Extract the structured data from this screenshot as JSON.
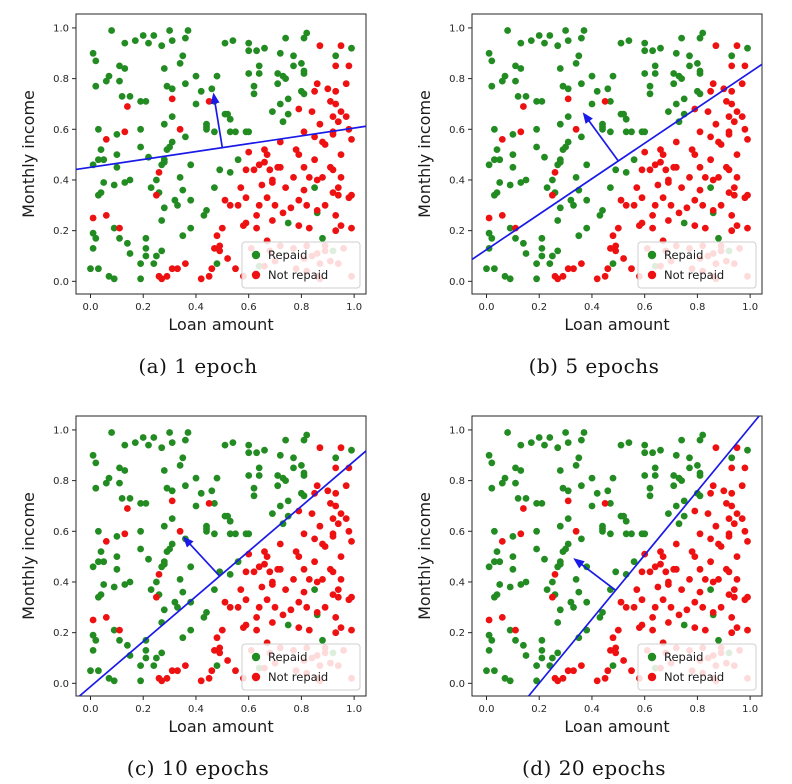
{
  "figure": {
    "subplots": [
      {
        "id": "a",
        "caption": "(a) 1 epoch",
        "line": {
          "slope": 0.155,
          "intercept": 0.45
        },
        "arrow": {
          "tail": [
            0.5,
            0.5275
          ],
          "tip": [
            0.466,
            0.745
          ]
        }
      },
      {
        "id": "b",
        "caption": "(b) 5 epochs",
        "line": {
          "slope": 0.7,
          "intercept": 0.125
        },
        "arrow": {
          "tail": [
            0.5,
            0.475
          ],
          "tip": [
            0.365,
            0.667
          ]
        }
      },
      {
        "id": "c",
        "caption": "(c) 10 epochs",
        "line": {
          "slope": 0.89,
          "intercept": -0.013
        },
        "arrow": {
          "tail": [
            0.49,
            0.423
          ],
          "tip": [
            0.35,
            0.58
          ]
        }
      },
      {
        "id": "d",
        "caption": "(d) 20 epochs",
        "line": {
          "slope": 1.264,
          "intercept": -0.252
        },
        "arrow": {
          "tail": [
            0.49,
            0.367
          ],
          "tip": [
            0.329,
            0.494
          ]
        }
      }
    ]
  },
  "chart_data": {
    "type": "scatter",
    "title": "",
    "xlabel": "Loan amount",
    "ylabel": "Monthly income",
    "xlim": [
      -0.055,
      1.045
    ],
    "ylim": [
      -0.05,
      1.055
    ],
    "xticks": [
      0.0,
      0.2,
      0.4,
      0.6,
      0.8,
      1.0
    ],
    "yticks": [
      0.0,
      0.2,
      0.4,
      0.6,
      0.8,
      1.0
    ],
    "grid": false,
    "legend": {
      "position": "lower right",
      "entries": [
        {
          "label": "Repaid",
          "color": "#228B22"
        },
        {
          "label": "Not repaid",
          "color": "#EE1111"
        }
      ]
    },
    "colors": {
      "repaid": "#228B22",
      "not_repaid": "#EE1111",
      "boundary_line": "#1A1AE8",
      "axis": "#262626",
      "legend_border": "#cfcfcf"
    },
    "series": [
      {
        "name": "Repaid",
        "marker": "circle",
        "color": "#228B22",
        "points": [
          [
            0.14,
            0.15
          ],
          [
            0.35,
            0.89
          ],
          [
            0.38,
            0.46
          ],
          [
            0.38,
            0.32
          ],
          [
            0.28,
            0.84
          ],
          [
            0.19,
            0.71
          ],
          [
            0.1,
            0.58
          ],
          [
            0.2,
            0.97
          ],
          [
            0.49,
            0.44
          ],
          [
            0.07,
            0.81
          ],
          [
            0.64,
            0.06
          ],
          [
            0.28,
            0.62
          ],
          [
            0.08,
            0.99
          ],
          [
            0.03,
            0.48
          ],
          [
            0.21,
            0.17
          ],
          [
            0.06,
            0.79
          ],
          [
            0.8,
            0.86
          ],
          [
            0.09,
            0.38
          ],
          [
            0.44,
            0.6
          ],
          [
            0.53,
            0.59
          ],
          [
            0.4,
            0.81
          ],
          [
            0.28,
            0.48
          ],
          [
            0.11,
            0.17
          ],
          [
            0.21,
            0.1
          ],
          [
            0.55,
            0.59
          ],
          [
            0.22,
            0.94
          ],
          [
            0.92,
            0.12
          ],
          [
            0.81,
            0.96
          ],
          [
            0.44,
            0.28
          ],
          [
            0.75,
            0.66
          ],
          [
            0.44,
            0.61
          ],
          [
            0.28,
            0.47
          ],
          [
            0.56,
            0.48
          ],
          [
            0.23,
            0.37
          ],
          [
            0.31,
            0.65
          ],
          [
            0.27,
            0.12
          ],
          [
            0.01,
            0.9
          ],
          [
            0.64,
            0.85
          ],
          [
            0.66,
            0.92
          ],
          [
            0.34,
            0.86
          ],
          [
            0.1,
            0.45
          ],
          [
            0.43,
            0.26
          ],
          [
            0.64,
            0.82
          ],
          [
            0.13,
            0.39
          ],
          [
            0.12,
            0.73
          ],
          [
            0.31,
            0.55
          ],
          [
            0.88,
            0.17
          ],
          [
            0.48,
            0.81
          ],
          [
            0.17,
            0.95
          ],
          [
            0.28,
            0.29
          ],
          [
            0.25,
            0.4
          ],
          [
            0.53,
            0.64
          ],
          [
            0.36,
            0.78
          ],
          [
            0.03,
            0.6
          ],
          [
            0.01,
            0.13
          ],
          [
            0.3,
            0.53
          ],
          [
            0.05,
            0.48
          ],
          [
            0.13,
            0.84
          ],
          [
            0.51,
            0.94
          ],
          [
            0.15,
            0.11
          ],
          [
            0.6,
            0.94
          ],
          [
            0.72,
            0.7
          ],
          [
            0.36,
            0.57
          ],
          [
            0.59,
            0.59
          ],
          [
            0.19,
            0.53
          ],
          [
            0.09,
            0.21
          ],
          [
            0.73,
            0.81
          ],
          [
            0.11,
            0.79
          ],
          [
            0.11,
            0.85
          ],
          [
            0.48,
            0.07
          ],
          [
            0.44,
            0.62
          ],
          [
            0.37,
            0.99
          ],
          [
            0.62,
            0.74
          ],
          [
            0.35,
            0.18
          ],
          [
            0.27,
            0.24
          ],
          [
            0.27,
            0.93
          ],
          [
            0.81,
            0.83
          ],
          [
            0.01,
            0.19
          ],
          [
            0.13,
            0.94
          ],
          [
            0.47,
            0.37
          ],
          [
            0.19,
            0.07
          ],
          [
            0.02,
            0.17
          ],
          [
            0.02,
            0.77
          ],
          [
            0.05,
            0.39
          ],
          [
            0.21,
            0.71
          ],
          [
            0.31,
            0.76
          ],
          [
            0.75,
            0.23
          ],
          [
            0.46,
            0.76
          ],
          [
            0.0,
            0.05
          ],
          [
            0.26,
            0.35
          ],
          [
            0.6,
            0.82
          ],
          [
            0.77,
            0.85
          ],
          [
            0.42,
            0.75
          ],
          [
            0.77,
            0.89
          ],
          [
            0.6,
            0.91
          ],
          [
            0.73,
            0.63
          ],
          [
            0.71,
            0.78
          ],
          [
            0.09,
            0.01
          ],
          [
            0.22,
            0.49
          ],
          [
            0.53,
            0.43
          ],
          [
            0.01,
            0.46
          ],
          [
            0.54,
            0.95
          ],
          [
            0.85,
            0.37
          ],
          [
            0.1,
            0.5
          ],
          [
            0.19,
            0.6
          ],
          [
            0.34,
            0.41
          ],
          [
            0.29,
            0.77
          ],
          [
            0.47,
            0.71
          ],
          [
            0.3,
            0.99
          ],
          [
            0.21,
            0.13
          ],
          [
            0.71,
            0.82
          ],
          [
            0.81,
            0.82
          ],
          [
            0.04,
            0.52
          ],
          [
            0.35,
            0.36
          ],
          [
            0.02,
            0.87
          ],
          [
            0.52,
            0.66
          ],
          [
            0.24,
            0.97
          ],
          [
            0.75,
            0.72
          ],
          [
            0.36,
            0.96
          ],
          [
            0.74,
            0.96
          ],
          [
            0.69,
            0.67
          ],
          [
            0.62,
            0.77
          ],
          [
            0.24,
            0.07
          ],
          [
            0.33,
            0.3
          ],
          [
            0.47,
            0.59
          ],
          [
            0.38,
            0.21
          ],
          [
            0.51,
            0.66
          ],
          [
            0.4,
            0.7
          ],
          [
            0.27,
            0.46
          ],
          [
            0.63,
            0.91
          ],
          [
            0.03,
            0.05
          ],
          [
            0.81,
            0.74
          ],
          [
            0.04,
            0.35
          ],
          [
            0.72,
            0.9
          ],
          [
            0.03,
            0.34
          ],
          [
            0.29,
            0.52
          ],
          [
            0.6,
            0.59
          ],
          [
            0.74,
            0.8
          ],
          [
            0.32,
            0.32
          ],
          [
            0.86,
            0.27
          ],
          [
            0.82,
            0.98
          ],
          [
            0.8,
            0.75
          ],
          [
            0.31,
            0.95
          ],
          [
            0.25,
            0.1
          ],
          [
            0.19,
            0.01
          ],
          [
            0.15,
            0.73
          ],
          [
            0.07,
            0.02
          ],
          [
            0.15,
            0.4
          ],
          [
            0.93,
            0.89
          ],
          [
            0.99,
            0.92
          ]
        ]
      },
      {
        "name": "Not repaid",
        "marker": "circle",
        "color": "#EE1111",
        "points": [
          [
            0.92,
            0.65
          ],
          [
            0.79,
            0.32
          ],
          [
            0.26,
            0.43
          ],
          [
            0.79,
            0.5
          ],
          [
            0.69,
            0.39
          ],
          [
            0.93,
            0.75
          ],
          [
            0.59,
            0.23
          ],
          [
            0.86,
            0.28
          ],
          [
            0.25,
            0.34
          ],
          [
            0.82,
            0.14
          ],
          [
            0.51,
            0.32
          ],
          [
            0.82,
            0.3
          ],
          [
            0.66,
            0.47
          ],
          [
            0.95,
            0.5
          ],
          [
            0.58,
            0.22
          ],
          [
            0.31,
            0.72
          ],
          [
            0.45,
            0.02
          ],
          [
            0.84,
            0.1
          ],
          [
            0.27,
            0.01
          ],
          [
            0.93,
            0.85
          ],
          [
            0.64,
            0.46
          ],
          [
            0.89,
            0.54
          ],
          [
            0.81,
            0.09
          ],
          [
            0.59,
            0.33
          ],
          [
            0.86,
            0.78
          ],
          [
            0.91,
            0.45
          ],
          [
            0.34,
            0.6
          ],
          [
            0.36,
            0.07
          ],
          [
            0.26,
            0.02
          ],
          [
            0.49,
            0.14
          ],
          [
            0.72,
            0.45
          ],
          [
            0.87,
            0.01
          ],
          [
            0.66,
            0.06
          ],
          [
            0.52,
            0.09
          ],
          [
            0.91,
            0.71
          ],
          [
            0.92,
            0.59
          ],
          [
            0.82,
            0.04
          ],
          [
            0.66,
            0.52
          ],
          [
            0.14,
            0.69
          ],
          [
            0.33,
            0.05
          ],
          [
            0.86,
            0.11
          ],
          [
            0.93,
            0.26
          ],
          [
            0.31,
            0.05
          ],
          [
            0.95,
            0.67
          ],
          [
            0.85,
            0.75
          ],
          [
            0.89,
            0.12
          ],
          [
            0.49,
            0.12
          ],
          [
            0.98,
            0.33
          ],
          [
            0.67,
            0.33
          ],
          [
            0.62,
            0.44
          ],
          [
            0.06,
            0.56
          ],
          [
            0.64,
            0.3
          ],
          [
            0.86,
            0.02
          ],
          [
            0.94,
            0.63
          ],
          [
            0.95,
            0.22
          ],
          [
            0.98,
            0.6
          ],
          [
            0.94,
            0.37
          ],
          [
            0.76,
            0.29
          ],
          [
            0.84,
            0.67
          ],
          [
            0.48,
            0.18
          ],
          [
            0.69,
            0.4
          ],
          [
            0.53,
            0.3
          ],
          [
            0.68,
            0.12
          ],
          [
            0.71,
            0.45
          ],
          [
            0.77,
            0.13
          ],
          [
            0.72,
            0.14
          ],
          [
            0.68,
            0.44
          ],
          [
            0.79,
            0.22
          ],
          [
            0.79,
            0.68
          ],
          [
            0.92,
            0.58
          ],
          [
            0.92,
            0.35
          ],
          [
            0.42,
            0.01
          ],
          [
            0.99,
            0.56
          ],
          [
            0.11,
            0.21
          ],
          [
            0.29,
            0.02
          ],
          [
            0.86,
            0.4
          ],
          [
            0.81,
            0.59
          ],
          [
            0.81,
            0.36
          ],
          [
            0.6,
            0.51
          ],
          [
            0.87,
            0.07
          ],
          [
            0.85,
            0.57
          ],
          [
            0.47,
            0.13
          ],
          [
            0.46,
            0.05
          ],
          [
            0.95,
            0.93
          ],
          [
            0.7,
            0.3
          ],
          [
            0.45,
            0.71
          ],
          [
            0.78,
            0.52
          ],
          [
            0.93,
            0.2
          ],
          [
            0.99,
            0.21
          ],
          [
            0.13,
            0.59
          ],
          [
            0.63,
            0.26
          ],
          [
            0.56,
            0.3
          ],
          [
            0.94,
            0.34
          ],
          [
            0.9,
            0.76
          ],
          [
            0.83,
            0.41
          ],
          [
            0.87,
            0.93
          ],
          [
            0.89,
            0.14
          ],
          [
            0.99,
            0.34
          ],
          [
            0.88,
            0.41
          ],
          [
            0.67,
            0.5
          ],
          [
            0.92,
            0.44
          ],
          [
            0.97,
            0.78
          ],
          [
            0.55,
            0.05
          ],
          [
            0.61,
            0.13
          ],
          [
            0.7,
            0.08
          ],
          [
            0.78,
            0.05
          ],
          [
            0.91,
            0.08
          ],
          [
            0.96,
            0.13
          ],
          [
            0.57,
            0.37
          ],
          [
            0.63,
            0.21
          ],
          [
            0.74,
            0.37
          ],
          [
            0.83,
            0.21
          ],
          [
            0.95,
            0.41
          ],
          [
            0.88,
            0.55
          ],
          [
            0.97,
            0.65
          ],
          [
            0.5,
            0.21
          ],
          [
            0.67,
            0.16
          ],
          [
            0.89,
            0.3
          ],
          [
            0.94,
            0.07
          ],
          [
            0.59,
            0.44
          ],
          [
            0.85,
            0.48
          ],
          [
            0.73,
            0.27
          ],
          [
            0.99,
            0.02
          ],
          [
            0.58,
            0.02
          ],
          [
            0.65,
            0.38
          ],
          [
            0.72,
            0.55
          ],
          [
            0.98,
            0.85
          ],
          [
            0.93,
            0.7
          ],
          [
            0.87,
            0.62
          ],
          [
            0.81,
            0.45
          ],
          [
            0.77,
            0.41
          ],
          [
            0.69,
            0.24
          ],
          [
            0.01,
            0.25
          ],
          [
            0.06,
            0.26
          ]
        ]
      }
    ],
    "annotations": [
      {
        "subplot": "a",
        "type": "boundary_line_with_normal_arrow"
      },
      {
        "subplot": "b",
        "type": "boundary_line_with_normal_arrow"
      },
      {
        "subplot": "c",
        "type": "boundary_line_with_normal_arrow"
      },
      {
        "subplot": "d",
        "type": "boundary_line_with_normal_arrow"
      }
    ]
  }
}
